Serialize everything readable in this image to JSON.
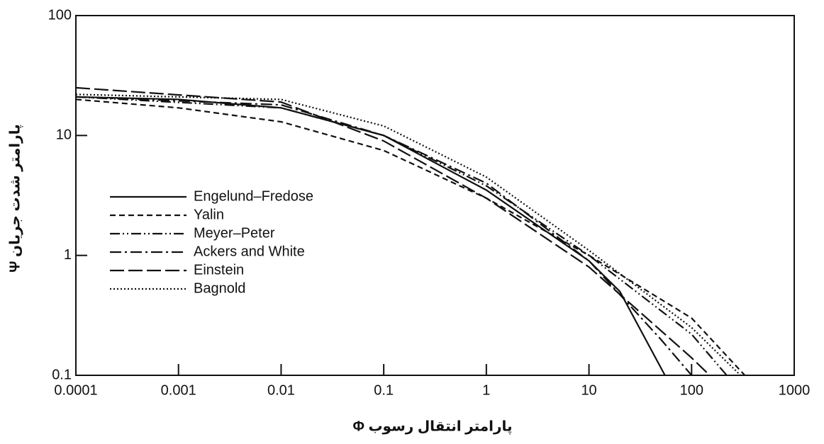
{
  "chart_data": {
    "type": "line",
    "xlabel": "Φ پارامتر انتقال رسوب",
    "ylabel": "Ψ پارامتر شدت جریان",
    "xscale": "log",
    "yscale": "log",
    "xlim": [
      0.0001,
      1000
    ],
    "ylim": [
      0.1,
      100
    ],
    "xticks": [
      0.0001,
      0.001,
      0.01,
      0.1,
      1,
      10,
      100,
      1000
    ],
    "yticks": [
      0.1,
      1,
      10,
      100
    ],
    "legend": "left",
    "series": [
      {
        "name": "Engelund–Fredose",
        "color": "#111111",
        "style": "solid",
        "x": [
          0.0001,
          0.001,
          0.01,
          0.1,
          1,
          10,
          20,
          55
        ],
        "values": [
          21,
          20,
          17,
          10,
          3.5,
          0.9,
          0.5,
          0.1
        ]
      },
      {
        "name": "Yalin",
        "color": "#111111",
        "style": "dashed",
        "x": [
          0.0001,
          0.001,
          0.01,
          0.1,
          1,
          10,
          100,
          330
        ],
        "values": [
          20,
          17,
          13,
          7.5,
          3,
          1,
          0.3,
          0.1
        ]
      },
      {
        "name": "Meyer–Peter",
        "color": "#111111",
        "style": "dash-dot-dot",
        "x": [
          0.0001,
          0.01,
          0.1,
          1,
          10,
          100,
          220
        ],
        "values": [
          21,
          17,
          10,
          3.8,
          1,
          0.22,
          0.1
        ]
      },
      {
        "name": "Ackers and White",
        "color": "#111111",
        "style": "dash-dot",
        "x": [
          0.0001,
          0.01,
          0.1,
          1,
          10,
          50,
          100
        ],
        "values": [
          21,
          18,
          10,
          4,
          0.9,
          0.2,
          0.1
        ]
      },
      {
        "name": "Einstein",
        "color": "#111111",
        "style": "long-dash",
        "x": [
          0.0001,
          0.01,
          0.1,
          1,
          10,
          100,
          150
        ],
        "values": [
          25,
          19,
          9,
          3,
          0.8,
          0.14,
          0.1
        ]
      },
      {
        "name": "Bagnold",
        "color": "#111111",
        "style": "dotted",
        "x": [
          0.0001,
          0.01,
          0.1,
          1,
          10,
          100,
          300
        ],
        "values": [
          22,
          20,
          12,
          4.5,
          1.1,
          0.25,
          0.1
        ]
      }
    ]
  }
}
